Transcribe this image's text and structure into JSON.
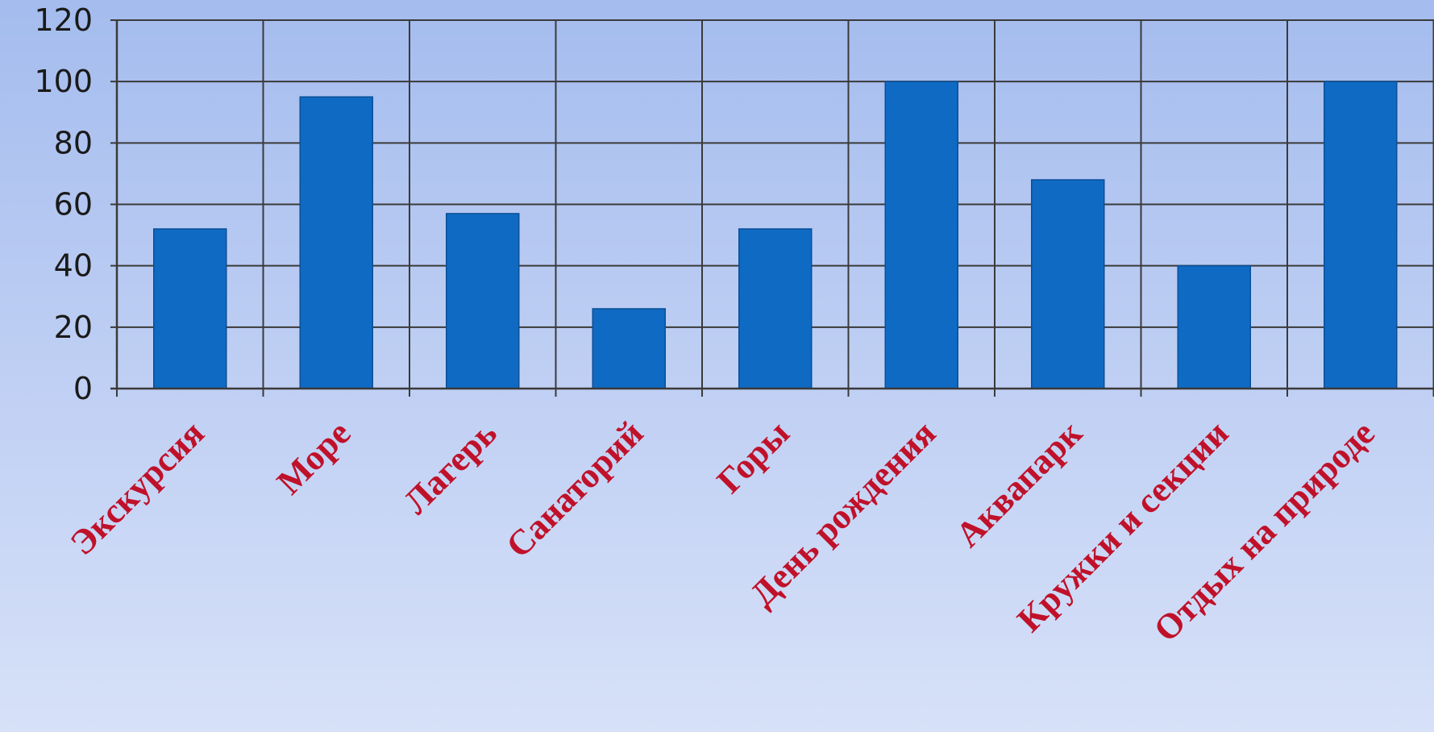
{
  "chart_data": {
    "type": "bar",
    "categories": [
      "Экскурсия",
      "Море",
      "Лагерь",
      "Санаторий",
      "Горы",
      "День рождения",
      "Аквапарк",
      "Кружки и секции",
      "Отдых на природе"
    ],
    "values": [
      52,
      95,
      57,
      26,
      52,
      100,
      68,
      40,
      100
    ],
    "title": "",
    "xlabel": "",
    "ylabel": "",
    "ylim": [
      0,
      120
    ],
    "yticks": [
      0,
      20,
      40,
      60,
      80,
      100,
      120
    ],
    "ytick_labels": [
      "0",
      "20",
      "40",
      "60",
      "80",
      "100",
      "120"
    ],
    "grid": true,
    "legend": "none",
    "colors": {
      "bar": "#0f6ac4",
      "bar_edge": "#0b4f96",
      "grid": "#3a3a3a",
      "x_label": "#c0112a",
      "y_label": "#1a1a1a"
    }
  }
}
